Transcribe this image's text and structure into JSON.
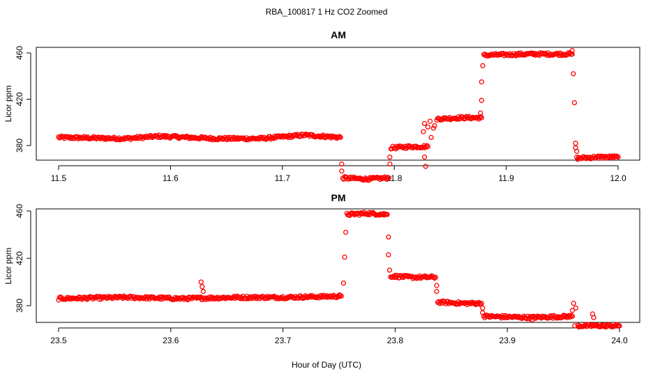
{
  "figure_title": "RBA_100817  1 Hz CO2 Zoomed",
  "xlabel": "Hour of Day (UTC)",
  "colors": {
    "points": "#ff0000",
    "frame": "#000000"
  },
  "chart_data": [
    {
      "type": "scatter",
      "title": "AM",
      "ylabel": "Licor ppm",
      "xlim": [
        11.5,
        12.0
      ],
      "ylim": [
        350,
        465
      ],
      "x_ticks": [
        "11.5",
        "11.6",
        "11.7",
        "11.8",
        "11.9",
        "12.0"
      ],
      "y_ticks": [
        "380",
        "420",
        "460"
      ],
      "marker": "open-circle",
      "segments": [
        {
          "x": [
            11.5,
            11.56,
            11.59,
            11.64,
            11.68,
            11.72,
            11.752
          ],
          "y": [
            387,
            386,
            388,
            386,
            386,
            389,
            387
          ]
        },
        {
          "x": [
            11.754,
            11.775,
            11.795
          ],
          "y": [
            352,
            351,
            352
          ]
        },
        {
          "x": [
            11.797,
            11.815,
            11.83
          ],
          "y": [
            378,
            379,
            379
          ]
        },
        {
          "x": [
            11.838,
            11.86,
            11.878
          ],
          "y": [
            403,
            404,
            404
          ]
        },
        {
          "x": [
            11.88,
            11.92,
            11.959
          ],
          "y": [
            458,
            459,
            459
          ]
        },
        {
          "x": [
            11.963,
            11.98,
            12.0
          ],
          "y": [
            369,
            370,
            370
          ]
        }
      ],
      "transitions": [
        {
          "x": 11.753,
          "y": 358
        },
        {
          "x": 11.753,
          "y": 364
        },
        {
          "x": 11.796,
          "y": 364
        },
        {
          "x": 11.796,
          "y": 370
        },
        {
          "x": 11.826,
          "y": 392
        },
        {
          "x": 11.827,
          "y": 399
        },
        {
          "x": 11.827,
          "y": 370
        },
        {
          "x": 11.828,
          "y": 362
        },
        {
          "x": 11.83,
          "y": 396
        },
        {
          "x": 11.832,
          "y": 401
        },
        {
          "x": 11.833,
          "y": 387
        },
        {
          "x": 11.835,
          "y": 395
        },
        {
          "x": 11.836,
          "y": 397
        },
        {
          "x": 11.877,
          "y": 408
        },
        {
          "x": 11.878,
          "y": 419
        },
        {
          "x": 11.878,
          "y": 435
        },
        {
          "x": 11.879,
          "y": 449
        },
        {
          "x": 11.959,
          "y": 462
        },
        {
          "x": 11.96,
          "y": 442
        },
        {
          "x": 11.961,
          "y": 417
        },
        {
          "x": 11.962,
          "y": 382
        },
        {
          "x": 11.962,
          "y": 378
        },
        {
          "x": 11.963,
          "y": 375
        }
      ]
    },
    {
      "type": "scatter",
      "title": "PM",
      "ylabel": "Licor ppm",
      "xlim": [
        23.5,
        24.0
      ],
      "ylim": [
        350,
        465
      ],
      "x_ticks": [
        "23.5",
        "23.6",
        "23.7",
        "23.8",
        "23.9",
        "24.0"
      ],
      "y_ticks": [
        "380",
        "420",
        "460"
      ],
      "marker": "open-circle",
      "segments": [
        {
          "x": [
            23.5,
            23.56,
            23.61,
            23.66,
            23.7,
            23.752
          ],
          "y": [
            386,
            387,
            386,
            387,
            387,
            388
          ]
        },
        {
          "x": [
            23.757,
            23.775,
            23.793
          ],
          "y": [
            457,
            458,
            457
          ]
        },
        {
          "x": [
            23.796,
            23.815,
            23.836
          ],
          "y": [
            405,
            404,
            404
          ]
        },
        {
          "x": [
            23.838,
            23.86,
            23.877
          ],
          "y": [
            383,
            382,
            382
          ]
        },
        {
          "x": [
            23.879,
            23.92,
            23.958
          ],
          "y": [
            371,
            370,
            371
          ]
        },
        {
          "x": [
            23.963,
            23.98,
            24.0
          ],
          "y": [
            363,
            363,
            363
          ]
        }
      ],
      "transitions": [
        {
          "x": 23.627,
          "y": 400
        },
        {
          "x": 23.628,
          "y": 396
        },
        {
          "x": 23.629,
          "y": 392
        },
        {
          "x": 23.754,
          "y": 399
        },
        {
          "x": 23.755,
          "y": 421
        },
        {
          "x": 23.756,
          "y": 442
        },
        {
          "x": 23.794,
          "y": 438
        },
        {
          "x": 23.794,
          "y": 423
        },
        {
          "x": 23.795,
          "y": 410
        },
        {
          "x": 23.837,
          "y": 397
        },
        {
          "x": 23.837,
          "y": 392
        },
        {
          "x": 23.878,
          "y": 378
        },
        {
          "x": 23.878,
          "y": 374
        },
        {
          "x": 23.922,
          "y": 368
        },
        {
          "x": 23.958,
          "y": 376
        },
        {
          "x": 23.959,
          "y": 382
        },
        {
          "x": 23.96,
          "y": 363
        },
        {
          "x": 23.961,
          "y": 378
        },
        {
          "x": 23.976,
          "y": 373
        },
        {
          "x": 23.977,
          "y": 370
        }
      ]
    }
  ]
}
